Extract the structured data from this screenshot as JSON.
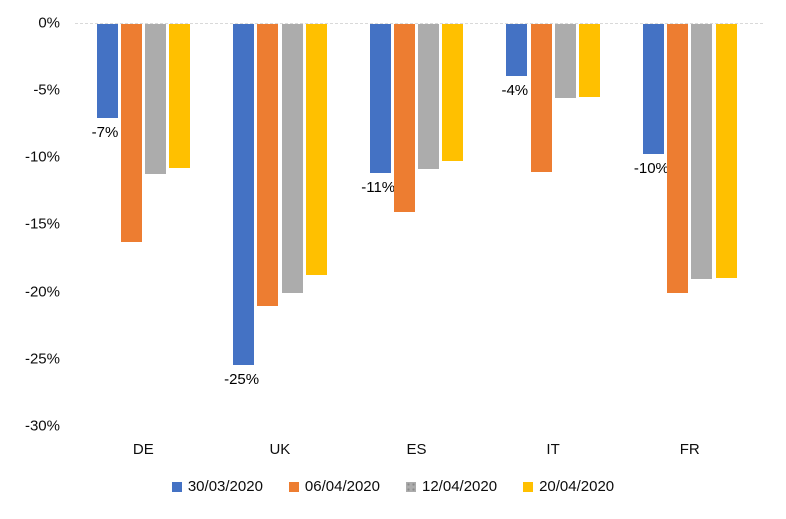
{
  "chart_data": {
    "type": "bar",
    "title": "",
    "orientation": "vertical-negative",
    "categories": [
      "DE",
      "UK",
      "ES",
      "IT",
      "FR"
    ],
    "series": [
      {
        "name": "30/03/2020",
        "color": "#4472C4",
        "pattern": "solid",
        "values": [
          -7,
          -25.4,
          -11.1,
          -3.9,
          -9.7
        ],
        "data_labels": [
          "-7%",
          "-25%",
          "-11%",
          "-4%",
          "-10%"
        ]
      },
      {
        "name": "06/04/2020",
        "color": "#ED7D31",
        "pattern": "solid",
        "values": [
          -16.2,
          -21,
          -14,
          -11,
          -20
        ]
      },
      {
        "name": "12/04/2020",
        "color": "#ACACAC",
        "pattern": "dotted",
        "values": [
          -11.2,
          -20,
          -10.8,
          -5.5,
          -19
        ]
      },
      {
        "name": "20/04/2020",
        "color": "#FFC000",
        "pattern": "solid",
        "values": [
          -10.7,
          -18.7,
          -10.2,
          -5.4,
          -18.9
        ]
      }
    ],
    "y_axis": {
      "ticks": [
        "0%",
        "-5%",
        "-10%",
        "-15%",
        "-20%",
        "-25%",
        "-30%"
      ],
      "max": 0,
      "min": -30,
      "tick_step": 5
    },
    "xlabel": "",
    "ylabel": "",
    "legend_position": "bottom",
    "gridlines": "zero-axis-line-only"
  },
  "colors": {
    "background": "#ffffff",
    "axis_line": "#d9d9d9",
    "text": "#0d0d0d"
  }
}
